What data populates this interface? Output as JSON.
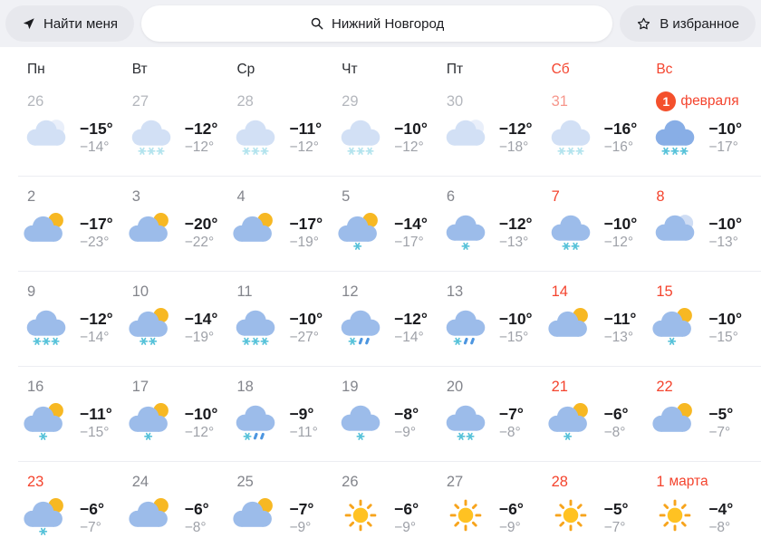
{
  "topbar": {
    "find_me": "Найти меня",
    "search_value": "Нижний Новгород",
    "favorites": "В избранное"
  },
  "colors": {
    "accent_red": "#F4442E",
    "badge_bg": "#F4502C",
    "day_temp": "#1A1B1F",
    "night_temp": "#9EA1A8",
    "cloud": "#9CBCEA",
    "cloud_strong": "#88AEE6",
    "cloud_light": "#CFDDF4",
    "sun": "#F7B823",
    "sun_core": "#FFC222",
    "sun_ray": "#F7A41C",
    "snow": "#57C2D9",
    "rain": "#4D96E0"
  },
  "calendar": {
    "day_headers": [
      {
        "label": "Пн",
        "red": false
      },
      {
        "label": "Вт",
        "red": false
      },
      {
        "label": "Ср",
        "red": false
      },
      {
        "label": "Чт",
        "red": false
      },
      {
        "label": "Пт",
        "red": false
      },
      {
        "label": "Сб",
        "red": true
      },
      {
        "label": "Вс",
        "red": true
      }
    ],
    "weeks": [
      [
        {
          "day": "26",
          "past": true,
          "icon": "cloudy",
          "hi": "−15°",
          "lo": "−14°"
        },
        {
          "day": "27",
          "past": true,
          "icon": "cloud-snow-3",
          "hi": "−12°",
          "lo": "−12°"
        },
        {
          "day": "28",
          "past": true,
          "icon": "cloud-snow-3",
          "hi": "−11°",
          "lo": "−12°"
        },
        {
          "day": "29",
          "past": true,
          "icon": "cloud-snow-3",
          "hi": "−10°",
          "lo": "−12°"
        },
        {
          "day": "30",
          "past": true,
          "icon": "cloudy",
          "hi": "−12°",
          "lo": "−18°"
        },
        {
          "day": "31",
          "past": true,
          "red": true,
          "icon": "cloud-snow-3",
          "hi": "−16°",
          "lo": "−16°"
        },
        {
          "day": "1",
          "label": "февраля",
          "badge": true,
          "red": true,
          "strong": true,
          "icon": "cloud-snow-3",
          "hi": "−10°",
          "lo": "−17°"
        }
      ],
      [
        {
          "day": "2",
          "icon": "partly-cloudy",
          "hi": "−17°",
          "lo": "−23°"
        },
        {
          "day": "3",
          "icon": "partly-cloudy",
          "hi": "−20°",
          "lo": "−22°"
        },
        {
          "day": "4",
          "icon": "partly-cloudy",
          "hi": "−17°",
          "lo": "−19°"
        },
        {
          "day": "5",
          "icon": "partly-cloudy-snow-1",
          "hi": "−14°",
          "lo": "−17°"
        },
        {
          "day": "6",
          "icon": "cloud-snow-1",
          "hi": "−12°",
          "lo": "−13°"
        },
        {
          "day": "7",
          "red": true,
          "icon": "cloud-snow-2",
          "hi": "−10°",
          "lo": "−12°"
        },
        {
          "day": "8",
          "red": true,
          "icon": "cloudy",
          "hi": "−10°",
          "lo": "−13°"
        }
      ],
      [
        {
          "day": "9",
          "icon": "cloud-snow-3",
          "hi": "−12°",
          "lo": "−14°"
        },
        {
          "day": "10",
          "icon": "partly-cloudy-snow-2",
          "hi": "−14°",
          "lo": "−19°"
        },
        {
          "day": "11",
          "icon": "cloud-snow-3",
          "hi": "−10°",
          "lo": "−27°"
        },
        {
          "day": "12",
          "icon": "cloud-snow-rain",
          "hi": "−12°",
          "lo": "−14°"
        },
        {
          "day": "13",
          "icon": "cloud-snow-rain",
          "hi": "−10°",
          "lo": "−15°"
        },
        {
          "day": "14",
          "red": true,
          "icon": "partly-cloudy",
          "hi": "−11°",
          "lo": "−13°"
        },
        {
          "day": "15",
          "red": true,
          "icon": "partly-cloudy-snow-1",
          "hi": "−10°",
          "lo": "−15°"
        }
      ],
      [
        {
          "day": "16",
          "icon": "partly-cloudy-snow-1",
          "hi": "−11°",
          "lo": "−15°"
        },
        {
          "day": "17",
          "icon": "partly-cloudy-snow-1",
          "hi": "−10°",
          "lo": "−12°"
        },
        {
          "day": "18",
          "icon": "cloud-snow-rain",
          "hi": "−9°",
          "lo": "−11°"
        },
        {
          "day": "19",
          "icon": "cloud-snow-1",
          "hi": "−8°",
          "lo": "−9°"
        },
        {
          "day": "20",
          "icon": "cloud-snow-2",
          "hi": "−7°",
          "lo": "−8°"
        },
        {
          "day": "21",
          "red": true,
          "icon": "partly-cloudy-snow-1",
          "hi": "−6°",
          "lo": "−8°"
        },
        {
          "day": "22",
          "red": true,
          "icon": "partly-cloudy",
          "hi": "−5°",
          "lo": "−7°"
        }
      ],
      [
        {
          "day": "23",
          "red": true,
          "icon": "partly-cloudy-snow-1",
          "hi": "−6°",
          "lo": "−7°"
        },
        {
          "day": "24",
          "icon": "partly-cloudy",
          "hi": "−6°",
          "lo": "−8°"
        },
        {
          "day": "25",
          "icon": "partly-cloudy",
          "hi": "−7°",
          "lo": "−9°"
        },
        {
          "day": "26",
          "icon": "sunny",
          "hi": "−6°",
          "lo": "−9°"
        },
        {
          "day": "27",
          "icon": "sunny",
          "hi": "−6°",
          "lo": "−9°"
        },
        {
          "day": "28",
          "red": true,
          "icon": "sunny",
          "hi": "−5°",
          "lo": "−7°"
        },
        {
          "day": "1",
          "label": "марта",
          "red": true,
          "icon": "sunny",
          "hi": "−4°",
          "lo": "−8°"
        }
      ]
    ]
  }
}
